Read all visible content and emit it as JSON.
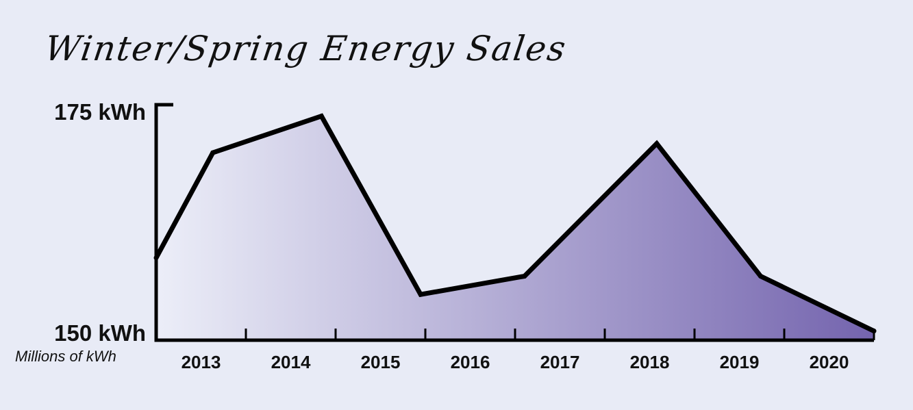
{
  "chart_data": {
    "type": "area",
    "title": "Winter/Spring Energy Sales",
    "ylabel": "Millions of kWh",
    "y_tick_labels": [
      "175 kWh",
      "150 kWh"
    ],
    "ylim": [
      150,
      175
    ],
    "categories": [
      "2013",
      "2014",
      "2015",
      "2016",
      "2017",
      "2018",
      "2019",
      "2020"
    ],
    "x": [
      2013.0,
      2013.6,
      2014.75,
      2015.8,
      2016.9,
      2018.3,
      2019.4,
      2020.6
    ],
    "values": [
      159.0,
      170.5,
      174.5,
      155.0,
      157.0,
      171.5,
      157.0,
      151.0
    ],
    "colors": {
      "fill_start": "#eceef8",
      "fill_end": "#7464ae",
      "line": "#000000"
    },
    "grid": false,
    "legend": "none"
  }
}
